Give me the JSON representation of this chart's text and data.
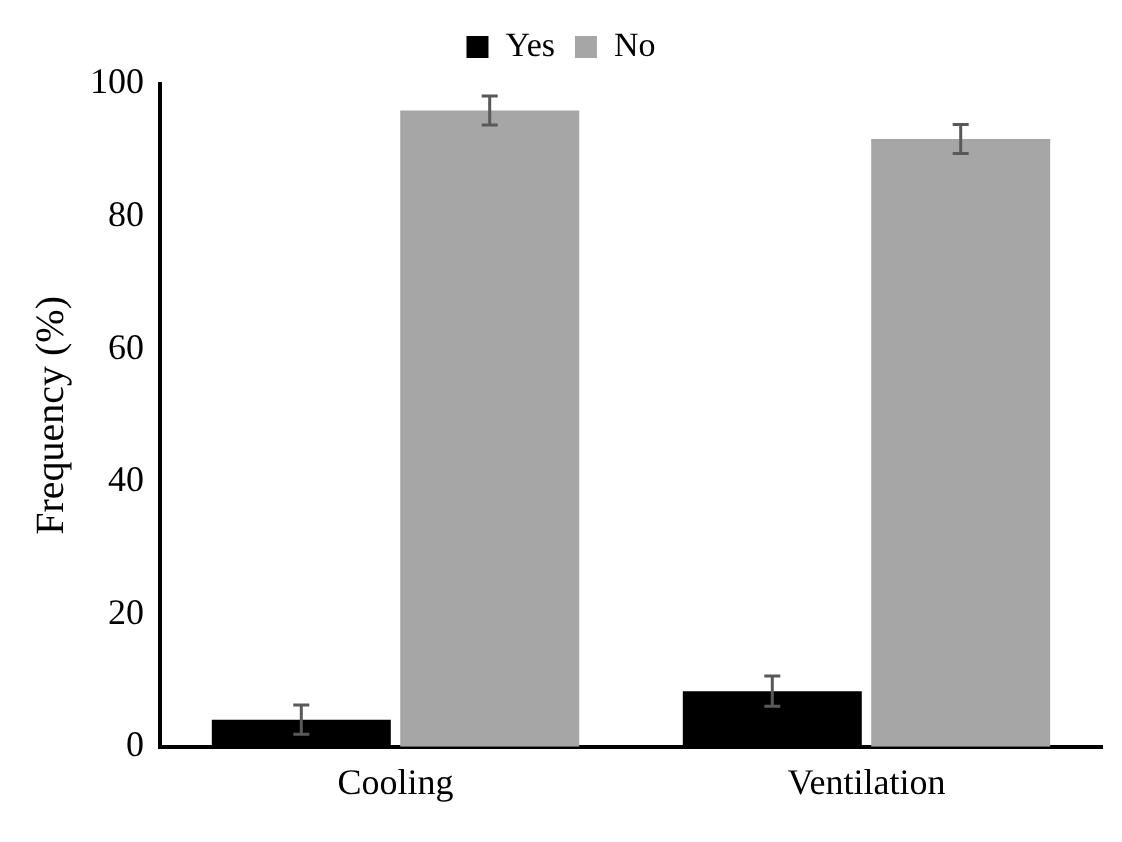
{
  "chart_data": {
    "type": "bar",
    "ylabel": "Frequency (%)",
    "categories": [
      "Cooling",
      "Ventilation"
    ],
    "series": [
      {
        "name": "Yes",
        "color": "#000000",
        "values": [
          4.1,
          8.4
        ],
        "errors": [
          2.2,
          2.3
        ]
      },
      {
        "name": "No",
        "color": "#a6a6a6",
        "values": [
          96.0,
          91.7
        ],
        "errors": [
          2.2,
          2.2
        ]
      }
    ],
    "ylim": [
      0,
      100
    ],
    "yticks": [
      0,
      20,
      40,
      60,
      80,
      100
    ],
    "grid": false,
    "legend": "top"
  }
}
